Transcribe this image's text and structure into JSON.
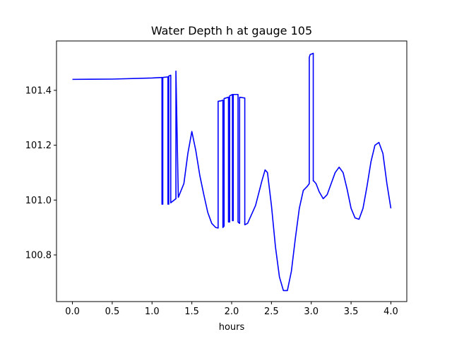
{
  "chart_data": {
    "type": "line",
    "title": "Water Depth h at gauge 105",
    "xlabel": "hours",
    "ylabel": "",
    "xlim": [
      -0.2,
      4.2
    ],
    "ylim": [
      100.63,
      101.58
    ],
    "xticks": [
      0.0,
      0.5,
      1.0,
      1.5,
      2.0,
      2.5,
      3.0,
      3.5,
      4.0
    ],
    "xtick_labels": [
      "0.0",
      "0.5",
      "1.0",
      "1.5",
      "2.0",
      "2.5",
      "3.0",
      "3.5",
      "4.0"
    ],
    "yticks": [
      100.8,
      101.0,
      101.2,
      101.4
    ],
    "ytick_labels": [
      "100.8",
      "101.0",
      "101.2",
      "101.4"
    ],
    "grid": false,
    "color": "#0000ff",
    "series": [
      {
        "x": [
          0.0,
          0.5,
          1.0,
          1.125,
          1.125,
          1.135,
          1.135,
          1.2,
          1.2,
          1.21,
          1.21,
          1.235,
          1.235,
          1.3,
          1.3,
          1.33,
          1.4,
          1.45,
          1.5,
          1.55,
          1.6,
          1.65,
          1.7,
          1.75,
          1.8,
          1.83,
          1.83,
          1.87,
          1.89,
          1.89,
          1.905,
          1.905,
          1.96,
          1.96,
          1.975,
          1.975,
          2.01,
          2.01,
          2.02,
          2.02,
          2.08,
          2.08,
          2.1,
          2.1,
          2.165,
          2.165,
          2.2,
          2.3,
          2.38,
          2.42,
          2.45,
          2.5,
          2.55,
          2.6,
          2.65,
          2.7,
          2.75,
          2.8,
          2.85,
          2.9,
          2.95,
          2.975,
          2.975,
          2.985,
          3.025,
          3.025,
          3.03,
          3.06,
          3.1,
          3.15,
          3.2,
          3.25,
          3.3,
          3.35,
          3.4,
          3.45,
          3.5,
          3.55,
          3.6,
          3.65,
          3.7,
          3.75,
          3.8,
          3.85,
          3.9,
          3.95,
          4.0
        ],
        "y": [
          101.44,
          101.441,
          101.445,
          101.447,
          100.985,
          100.985,
          101.447,
          101.449,
          100.985,
          100.985,
          101.452,
          101.455,
          100.99,
          101.005,
          101.47,
          101.01,
          101.06,
          101.17,
          101.25,
          101.18,
          101.09,
          101.02,
          100.955,
          100.915,
          100.9,
          100.898,
          101.36,
          101.362,
          101.364,
          100.9,
          100.905,
          101.37,
          101.375,
          100.92,
          100.92,
          101.38,
          101.385,
          100.925,
          100.925,
          101.385,
          101.385,
          100.92,
          100.915,
          101.375,
          101.372,
          100.91,
          100.915,
          100.98,
          101.07,
          101.11,
          101.1,
          100.98,
          100.83,
          100.72,
          100.67,
          100.67,
          100.74,
          100.86,
          100.97,
          101.035,
          101.05,
          101.06,
          101.52,
          101.53,
          101.535,
          101.07,
          101.07,
          101.06,
          101.03,
          101.005,
          101.02,
          101.06,
          101.1,
          101.12,
          101.1,
          101.04,
          100.97,
          100.935,
          100.93,
          100.97,
          101.05,
          101.14,
          101.2,
          101.21,
          101.17,
          101.06,
          100.97
        ]
      }
    ]
  }
}
